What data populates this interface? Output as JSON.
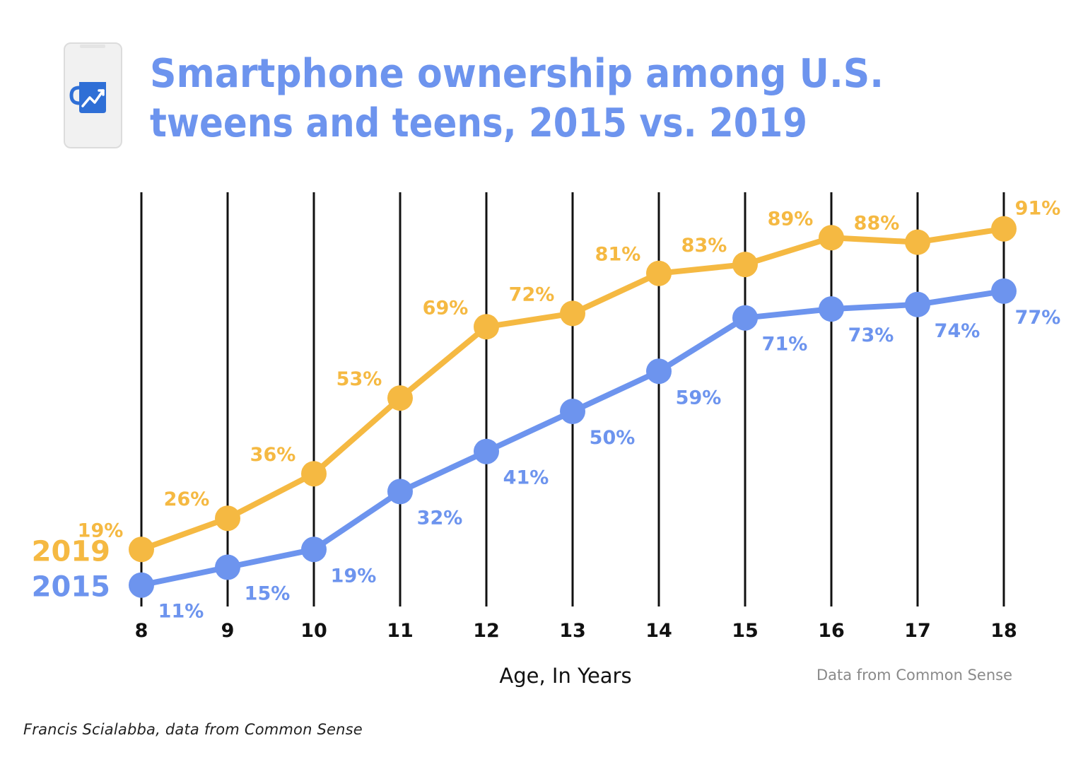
{
  "header": {
    "title_line1": "Smartphone ownership among U.S.",
    "title_line2": "tweens and teens, 2015 vs. 2019",
    "icon": "phone-with-mug-chart-icon"
  },
  "chart_data": {
    "type": "line",
    "x": [
      8,
      9,
      10,
      11,
      12,
      13,
      14,
      15,
      16,
      17,
      18
    ],
    "tick_labels": [
      "8",
      "9",
      "10",
      "11",
      "12",
      "13",
      "14",
      "15",
      "16",
      "17",
      "18"
    ],
    "xlabel": "Age, In Years",
    "ylabel": "",
    "ylim": [
      0,
      100
    ],
    "grid": "vertical lines at each age",
    "series": [
      {
        "name": "2019",
        "color": "#F5B942",
        "values": [
          19,
          26,
          36,
          53,
          69,
          72,
          81,
          83,
          89,
          88,
          91
        ],
        "data_labels": [
          "19%",
          "26%",
          "36%",
          "53%",
          "69%",
          "72%",
          "81%",
          "83%",
          "89%",
          "88%",
          "91%"
        ]
      },
      {
        "name": "2015",
        "color": "#6D94EE",
        "values": [
          11,
          15,
          19,
          32,
          41,
          50,
          59,
          71,
          73,
          74,
          77
        ],
        "data_labels": [
          "11%",
          "15%",
          "19%",
          "32%",
          "41%",
          "50%",
          "59%",
          "71%",
          "73%",
          "74%",
          "77%"
        ]
      }
    ],
    "source_note": "Data from Common Sense"
  },
  "footer": {
    "credit": "Francis Scialabba, data from Common Sense"
  }
}
